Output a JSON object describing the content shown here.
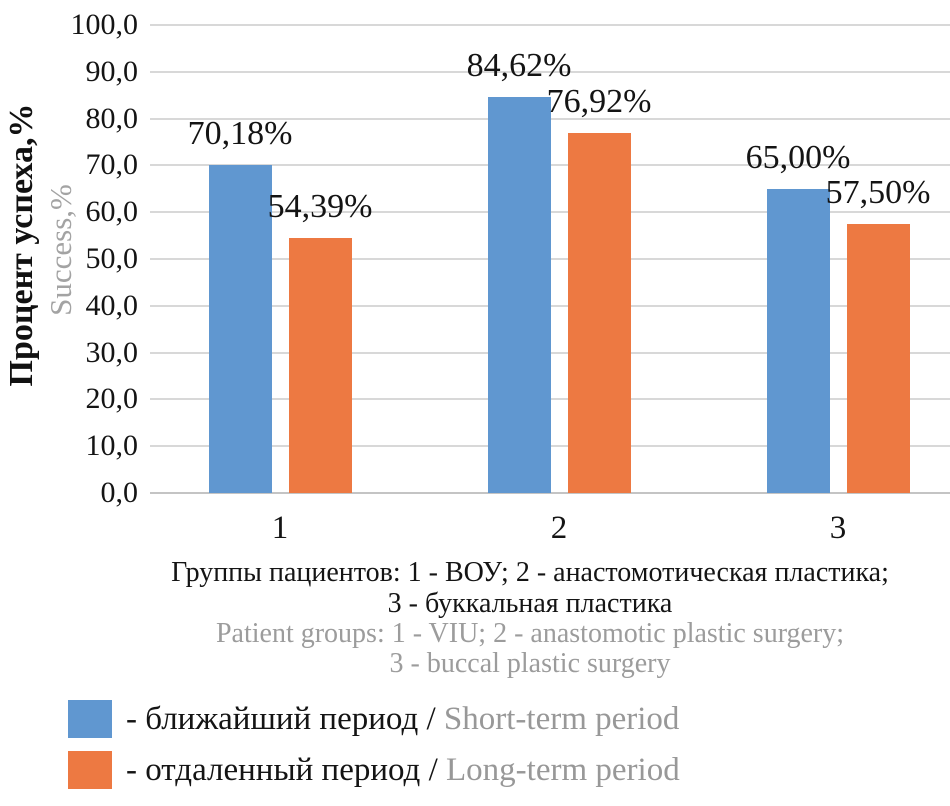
{
  "y_axis": {
    "title_ru": "Процент успеха,%",
    "title_en": "Success,%"
  },
  "caption": {
    "ru_line1": "Группы пациентов: 1 - ВОУ; 2 - анастомотическая пластика;",
    "ru_line2": "3 - буккальная пластика",
    "en_line1": "Patient groups: 1 - VIU; 2 - anastomotic plastic surgery;",
    "en_line2": "3 - buccal plastic surgery"
  },
  "legend": [
    {
      "ru": "- ближайший период / ",
      "en": "Short-term period"
    },
    {
      "ru": "- отдаленный период / ",
      "en": "Long-term period"
    }
  ],
  "colors": {
    "short_term": "#6097d0",
    "long_term": "#ed7942",
    "gridline": "#d8d8d8",
    "gray_text": "#9c9c9c"
  },
  "chart_data": {
    "type": "bar",
    "title": "",
    "categories": [
      "1",
      "2",
      "3"
    ],
    "series": [
      {
        "name": "ближайший период / Short-term period",
        "color": "#6097d0",
        "values": [
          70.18,
          84.62,
          65.0
        ],
        "labels": [
          "70,18%",
          "84,62%",
          "65,00%"
        ]
      },
      {
        "name": "отдаленный период / Long-term period",
        "color": "#ed7942",
        "values": [
          54.39,
          76.92,
          57.5
        ],
        "labels": [
          "54,39%",
          "76,92%",
          "57,50%"
        ]
      }
    ],
    "xlabel": "Группы пациентов / Patient groups",
    "ylabel": "Процент успеха,% / Success,%",
    "ylim": [
      0,
      100
    ],
    "ytick_step": 10,
    "ytick_labels": [
      "0,0",
      "10,0",
      "20,0",
      "30,0",
      "40,0",
      "50,0",
      "60,0",
      "70,0",
      "80,0",
      "90,0",
      "100,0"
    ],
    "grid": true,
    "legend_position": "bottom-left"
  }
}
